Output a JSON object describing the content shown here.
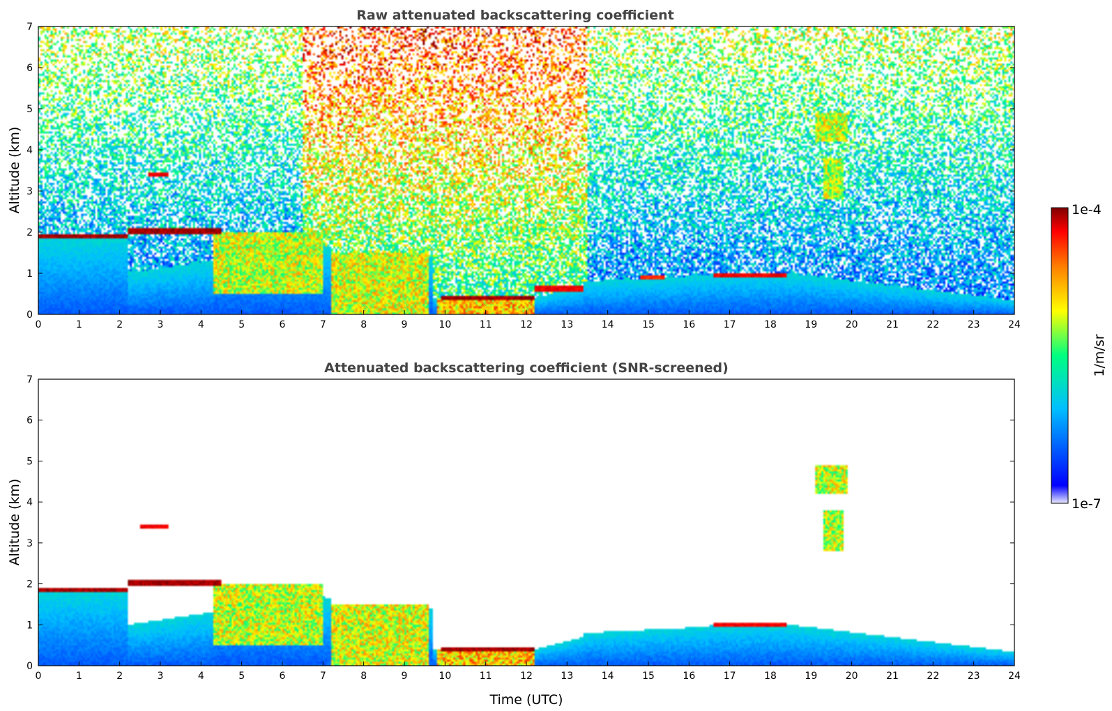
{
  "chart_data": [
    {
      "type": "heatmap",
      "title": "Raw attenuated backscattering coefficient",
      "xlabel": "",
      "ylabel": "Altitude (km)",
      "xlim": [
        0,
        24
      ],
      "ylim": [
        0,
        7
      ],
      "xticks": [
        "0",
        "1",
        "2",
        "3",
        "4",
        "5",
        "6",
        "7",
        "8",
        "9",
        "10",
        "11",
        "12",
        "13",
        "14",
        "15",
        "16",
        "17",
        "18",
        "19",
        "20",
        "21",
        "22",
        "23",
        "24"
      ],
      "yticks": [
        "0",
        "1",
        "2",
        "3",
        "4",
        "5",
        "6",
        "7"
      ],
      "screened": false,
      "features": [
        {
          "kind": "layer",
          "t0": 0,
          "t1": 2.2,
          "z0": 1.85,
          "z1": 1.95,
          "value": 1.0
        },
        {
          "kind": "layer",
          "t0": 2.2,
          "t1": 4.5,
          "z0": 1.95,
          "z1": 2.1,
          "value": 1.0
        },
        {
          "kind": "layer",
          "t0": 2.7,
          "t1": 3.2,
          "z0": 3.35,
          "z1": 3.45,
          "value": 0.95
        },
        {
          "kind": "layer",
          "t0": 9.9,
          "t1": 12.2,
          "z0": 0.35,
          "z1": 0.45,
          "value": 1.0
        },
        {
          "kind": "layer",
          "t0": 12.2,
          "t1": 13.4,
          "z0": 0.55,
          "z1": 0.7,
          "value": 0.95
        },
        {
          "kind": "layer",
          "t0": 16.6,
          "t1": 18.4,
          "z0": 0.9,
          "z1": 1.0,
          "value": 0.95
        },
        {
          "kind": "layer",
          "t0": 14.8,
          "t1": 15.4,
          "z0": 0.85,
          "z1": 0.95,
          "value": 0.9
        },
        {
          "kind": "blob",
          "t0": 4.3,
          "t1": 7.0,
          "z0": 0.5,
          "z1": 2.0,
          "value": 0.7
        },
        {
          "kind": "blob",
          "t0": 7.2,
          "t1": 9.6,
          "z0": 0.0,
          "z1": 1.5,
          "value": 0.72
        },
        {
          "kind": "blob",
          "t0": 9.8,
          "t1": 12.2,
          "z0": 0.0,
          "z1": 0.4,
          "value": 0.8
        },
        {
          "kind": "blob",
          "t0": 19.3,
          "t1": 19.8,
          "z0": 2.8,
          "z1": 3.8,
          "value": 0.68
        },
        {
          "kind": "blob",
          "t0": 19.1,
          "t1": 19.9,
          "z0": 4.2,
          "z1": 4.9,
          "value": 0.7
        }
      ]
    },
    {
      "type": "heatmap",
      "title": "Attenuated backscattering coefficient (SNR-screened)",
      "xlabel": "Time (UTC)",
      "ylabel": "Altitude (km)",
      "xlim": [
        0,
        24
      ],
      "ylim": [
        0,
        7
      ],
      "xticks": [
        "0",
        "1",
        "2",
        "3",
        "4",
        "5",
        "6",
        "7",
        "8",
        "9",
        "10",
        "11",
        "12",
        "13",
        "14",
        "15",
        "16",
        "17",
        "18",
        "19",
        "20",
        "21",
        "22",
        "23",
        "24"
      ],
      "yticks": [
        "0",
        "1",
        "2",
        "3",
        "4",
        "5",
        "6",
        "7"
      ],
      "screened": true,
      "features": [
        {
          "kind": "layer",
          "t0": 0,
          "t1": 2.2,
          "z0": 1.8,
          "z1": 1.9,
          "value": 1.0
        },
        {
          "kind": "layer",
          "t0": 2.2,
          "t1": 4.5,
          "z0": 1.95,
          "z1": 2.1,
          "value": 1.0
        },
        {
          "kind": "layer",
          "t0": 2.5,
          "t1": 3.2,
          "z0": 3.35,
          "z1": 3.45,
          "value": 0.95
        },
        {
          "kind": "layer",
          "t0": 9.9,
          "t1": 12.2,
          "z0": 0.35,
          "z1": 0.45,
          "value": 1.0
        },
        {
          "kind": "layer",
          "t0": 16.6,
          "t1": 18.4,
          "z0": 0.95,
          "z1": 1.05,
          "value": 0.95
        },
        {
          "kind": "blob",
          "t0": 4.3,
          "t1": 7.0,
          "z0": 0.5,
          "z1": 2.0,
          "value": 0.7
        },
        {
          "kind": "blob",
          "t0": 7.2,
          "t1": 9.6,
          "z0": 0.0,
          "z1": 1.5,
          "value": 0.72
        },
        {
          "kind": "blob",
          "t0": 9.8,
          "t1": 12.2,
          "z0": 0.0,
          "z1": 0.4,
          "value": 0.8
        },
        {
          "kind": "blob",
          "t0": 19.3,
          "t1": 19.8,
          "z0": 2.8,
          "z1": 3.8,
          "value": 0.68
        },
        {
          "kind": "blob",
          "t0": 19.1,
          "t1": 19.9,
          "z0": 4.2,
          "z1": 4.9,
          "value": 0.7
        }
      ]
    }
  ],
  "colorbar": {
    "label": "1/m/sr",
    "max_label": "1e-4",
    "min_label": "1e-7",
    "range": [
      "1e-7",
      "1e-4"
    ],
    "scale": "log",
    "colors": [
      "#ffffff",
      "#0000ff",
      "#00bfff",
      "#00ff80",
      "#ffff00",
      "#ff8000",
      "#ff0000",
      "#800000"
    ]
  }
}
